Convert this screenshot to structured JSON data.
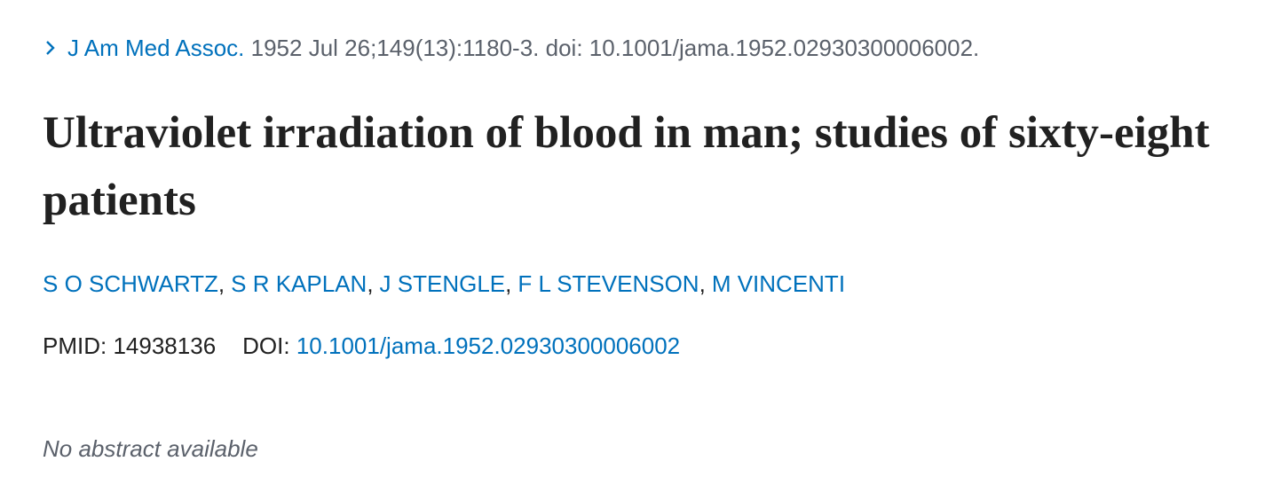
{
  "citation": {
    "journal": "J Am Med Assoc.",
    "details": "1952 Jul 26;149(13):1180-3. doi: 10.1001/jama.1952.02930300006002."
  },
  "title": "Ultraviolet irradiation of blood in man; studies of sixty-eight patients",
  "authors": {
    "names": [
      "S O SCHWARTZ",
      "S R KAPLAN",
      "J STENGLE",
      "F L STEVENSON",
      "M VINCENTI"
    ],
    "separator": ","
  },
  "identifiers": {
    "pmid_label": "PMID:",
    "pmid": "14938136",
    "doi_label": "DOI:",
    "doi": "10.1001/jama.1952.02930300006002"
  },
  "abstract": "No abstract available"
}
